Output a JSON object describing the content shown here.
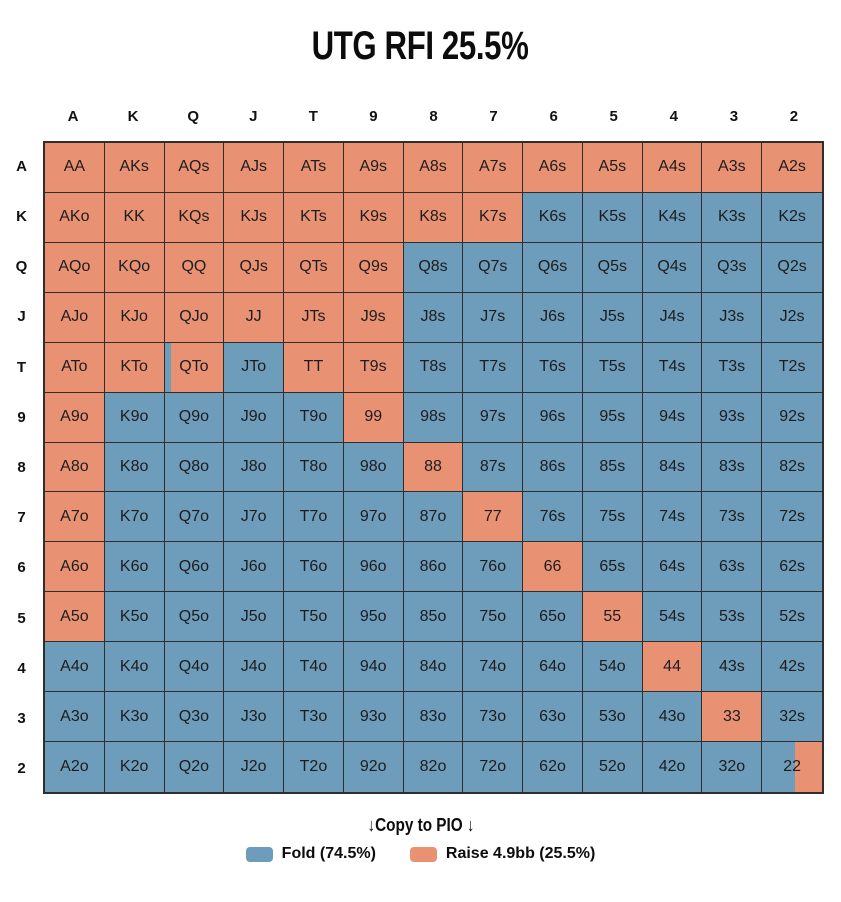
{
  "title": "UTG RFI 25.5%",
  "copy_to_pio_label": "↓Copy to PIO ↓",
  "colors": {
    "raise": "#E99173",
    "fold": "#6E9CBB",
    "border": "#2e2e2e",
    "background": "#ffffff",
    "text": "#1d1d1d"
  },
  "legend": [
    {
      "label": "Fold (74.5%)",
      "color_key": "fold"
    },
    {
      "label": "Raise 4.9bb (25.5%)",
      "color_key": "raise"
    }
  ],
  "chart_data": {
    "type": "heatmap",
    "title": "UTG RFI 25.5%",
    "subtitle_stats": {
      "raise_pct": 25.5,
      "fold_pct": 74.5,
      "raise_size_bb": 4.9
    },
    "row_labels": [
      "A",
      "K",
      "Q",
      "J",
      "T",
      "9",
      "8",
      "7",
      "6",
      "5",
      "4",
      "3",
      "2"
    ],
    "col_labels": [
      "A",
      "K",
      "Q",
      "J",
      "T",
      "9",
      "8",
      "7",
      "6",
      "5",
      "4",
      "3",
      "2"
    ],
    "cell_encoding": "Each cell is [hand_label, action, fold_pct_if_mixed]; action R=raise (salmon), F=fold (blue), M=mixed split cell (left portion fold-blue at given percent, remainder raise-salmon)",
    "grid": [
      [
        [
          "AA",
          "R"
        ],
        [
          "AKs",
          "R"
        ],
        [
          "AQs",
          "R"
        ],
        [
          "AJs",
          "R"
        ],
        [
          "ATs",
          "R"
        ],
        [
          "A9s",
          "R"
        ],
        [
          "A8s",
          "R"
        ],
        [
          "A7s",
          "R"
        ],
        [
          "A6s",
          "R"
        ],
        [
          "A5s",
          "R"
        ],
        [
          "A4s",
          "R"
        ],
        [
          "A3s",
          "R"
        ],
        [
          "A2s",
          "R"
        ]
      ],
      [
        [
          "AKo",
          "R"
        ],
        [
          "KK",
          "R"
        ],
        [
          "KQs",
          "R"
        ],
        [
          "KJs",
          "R"
        ],
        [
          "KTs",
          "R"
        ],
        [
          "K9s",
          "R"
        ],
        [
          "K8s",
          "R"
        ],
        [
          "K7s",
          "R"
        ],
        [
          "K6s",
          "F"
        ],
        [
          "K5s",
          "F"
        ],
        [
          "K4s",
          "F"
        ],
        [
          "K3s",
          "F"
        ],
        [
          "K2s",
          "F"
        ]
      ],
      [
        [
          "AQo",
          "R"
        ],
        [
          "KQo",
          "R"
        ],
        [
          "QQ",
          "R"
        ],
        [
          "QJs",
          "R"
        ],
        [
          "QTs",
          "R"
        ],
        [
          "Q9s",
          "R"
        ],
        [
          "Q8s",
          "F"
        ],
        [
          "Q7s",
          "F"
        ],
        [
          "Q6s",
          "F"
        ],
        [
          "Q5s",
          "F"
        ],
        [
          "Q4s",
          "F"
        ],
        [
          "Q3s",
          "F"
        ],
        [
          "Q2s",
          "F"
        ]
      ],
      [
        [
          "AJo",
          "R"
        ],
        [
          "KJo",
          "R"
        ],
        [
          "QJo",
          "R"
        ],
        [
          "JJ",
          "R"
        ],
        [
          "JTs",
          "R"
        ],
        [
          "J9s",
          "R"
        ],
        [
          "J8s",
          "F"
        ],
        [
          "J7s",
          "F"
        ],
        [
          "J6s",
          "F"
        ],
        [
          "J5s",
          "F"
        ],
        [
          "J4s",
          "F"
        ],
        [
          "J3s",
          "F"
        ],
        [
          "J2s",
          "F"
        ]
      ],
      [
        [
          "ATo",
          "R"
        ],
        [
          "KTo",
          "R"
        ],
        [
          "QTo",
          "M",
          10
        ],
        [
          "JTo",
          "F"
        ],
        [
          "TT",
          "R"
        ],
        [
          "T9s",
          "R"
        ],
        [
          "T8s",
          "F"
        ],
        [
          "T7s",
          "F"
        ],
        [
          "T6s",
          "F"
        ],
        [
          "T5s",
          "F"
        ],
        [
          "T4s",
          "F"
        ],
        [
          "T3s",
          "F"
        ],
        [
          "T2s",
          "F"
        ]
      ],
      [
        [
          "A9o",
          "R"
        ],
        [
          "K9o",
          "F"
        ],
        [
          "Q9o",
          "F"
        ],
        [
          "J9o",
          "F"
        ],
        [
          "T9o",
          "F"
        ],
        [
          "99",
          "R"
        ],
        [
          "98s",
          "F"
        ],
        [
          "97s",
          "F"
        ],
        [
          "96s",
          "F"
        ],
        [
          "95s",
          "F"
        ],
        [
          "94s",
          "F"
        ],
        [
          "93s",
          "F"
        ],
        [
          "92s",
          "F"
        ]
      ],
      [
        [
          "A8o",
          "R"
        ],
        [
          "K8o",
          "F"
        ],
        [
          "Q8o",
          "F"
        ],
        [
          "J8o",
          "F"
        ],
        [
          "T8o",
          "F"
        ],
        [
          "98o",
          "F"
        ],
        [
          "88",
          "R"
        ],
        [
          "87s",
          "F"
        ],
        [
          "86s",
          "F"
        ],
        [
          "85s",
          "F"
        ],
        [
          "84s",
          "F"
        ],
        [
          "83s",
          "F"
        ],
        [
          "82s",
          "F"
        ]
      ],
      [
        [
          "A7o",
          "R"
        ],
        [
          "K7o",
          "F"
        ],
        [
          "Q7o",
          "F"
        ],
        [
          "J7o",
          "F"
        ],
        [
          "T7o",
          "F"
        ],
        [
          "97o",
          "F"
        ],
        [
          "87o",
          "F"
        ],
        [
          "77",
          "R"
        ],
        [
          "76s",
          "F"
        ],
        [
          "75s",
          "F"
        ],
        [
          "74s",
          "F"
        ],
        [
          "73s",
          "F"
        ],
        [
          "72s",
          "F"
        ]
      ],
      [
        [
          "A6o",
          "R"
        ],
        [
          "K6o",
          "F"
        ],
        [
          "Q6o",
          "F"
        ],
        [
          "J6o",
          "F"
        ],
        [
          "T6o",
          "F"
        ],
        [
          "96o",
          "F"
        ],
        [
          "86o",
          "F"
        ],
        [
          "76o",
          "F"
        ],
        [
          "66",
          "R"
        ],
        [
          "65s",
          "F"
        ],
        [
          "64s",
          "F"
        ],
        [
          "63s",
          "F"
        ],
        [
          "62s",
          "F"
        ]
      ],
      [
        [
          "A5o",
          "R"
        ],
        [
          "K5o",
          "F"
        ],
        [
          "Q5o",
          "F"
        ],
        [
          "J5o",
          "F"
        ],
        [
          "T5o",
          "F"
        ],
        [
          "95o",
          "F"
        ],
        [
          "85o",
          "F"
        ],
        [
          "75o",
          "F"
        ],
        [
          "65o",
          "F"
        ],
        [
          "55",
          "R"
        ],
        [
          "54s",
          "F"
        ],
        [
          "53s",
          "F"
        ],
        [
          "52s",
          "F"
        ]
      ],
      [
        [
          "A4o",
          "F"
        ],
        [
          "K4o",
          "F"
        ],
        [
          "Q4o",
          "F"
        ],
        [
          "J4o",
          "F"
        ],
        [
          "T4o",
          "F"
        ],
        [
          "94o",
          "F"
        ],
        [
          "84o",
          "F"
        ],
        [
          "74o",
          "F"
        ],
        [
          "64o",
          "F"
        ],
        [
          "54o",
          "F"
        ],
        [
          "44",
          "R"
        ],
        [
          "43s",
          "F"
        ],
        [
          "42s",
          "F"
        ]
      ],
      [
        [
          "A3o",
          "F"
        ],
        [
          "K3o",
          "F"
        ],
        [
          "Q3o",
          "F"
        ],
        [
          "J3o",
          "F"
        ],
        [
          "T3o",
          "F"
        ],
        [
          "93o",
          "F"
        ],
        [
          "83o",
          "F"
        ],
        [
          "73o",
          "F"
        ],
        [
          "63o",
          "F"
        ],
        [
          "53o",
          "F"
        ],
        [
          "43o",
          "F"
        ],
        [
          "33",
          "R"
        ],
        [
          "32s",
          "F"
        ]
      ],
      [
        [
          "A2o",
          "F"
        ],
        [
          "K2o",
          "F"
        ],
        [
          "Q2o",
          "F"
        ],
        [
          "J2o",
          "F"
        ],
        [
          "T2o",
          "F"
        ],
        [
          "92o",
          "F"
        ],
        [
          "82o",
          "F"
        ],
        [
          "72o",
          "F"
        ],
        [
          "62o",
          "F"
        ],
        [
          "52o",
          "F"
        ],
        [
          "42o",
          "F"
        ],
        [
          "32o",
          "F"
        ],
        [
          "22",
          "M",
          55
        ]
      ]
    ],
    "legend_entries": [
      "Fold (74.5%)",
      "Raise 4.9bb (25.5%)"
    ],
    "legend_position": "bottom",
    "grid_lines": true
  }
}
